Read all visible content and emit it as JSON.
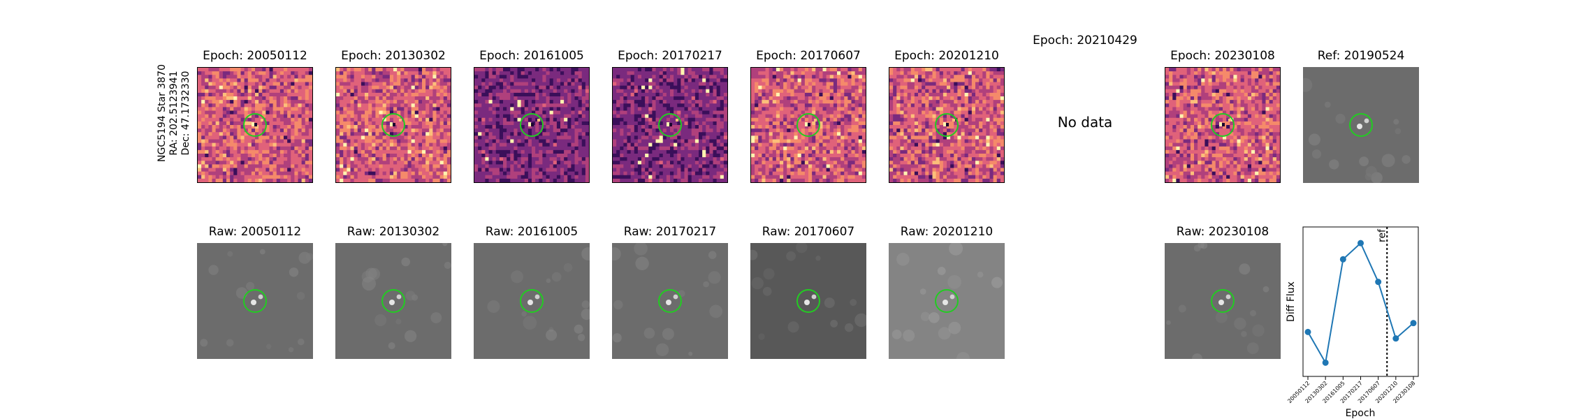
{
  "star_label": {
    "line1": "NGC5194 Star 3870",
    "line2": "RA: 202.5123941",
    "line3": "Dec: 47.1732330"
  },
  "diff_panels": [
    {
      "title": "Epoch: 20050112",
      "status": "image"
    },
    {
      "title": "Epoch: 20130302",
      "status": "image"
    },
    {
      "title": "Epoch: 20161005",
      "status": "image"
    },
    {
      "title": "Epoch: 20170217",
      "status": "image"
    },
    {
      "title": "Epoch: 20170607",
      "status": "image"
    },
    {
      "title": "Epoch: 20201210",
      "status": "image"
    },
    {
      "title": "Epoch: 20210429",
      "status": "nodata",
      "message": "No data"
    },
    {
      "title": "Epoch: 20230108",
      "status": "image"
    }
  ],
  "ref_panel": {
    "title": "Ref: 20190524"
  },
  "raw_panels": [
    {
      "title": "Raw: 20050112"
    },
    {
      "title": "Raw: 20130302"
    },
    {
      "title": "Raw: 20161005"
    },
    {
      "title": "Raw: 20170217"
    },
    {
      "title": "Raw: 20170607"
    },
    {
      "title": "Raw: 20201210"
    },
    {
      "title": "Raw: 20230108"
    }
  ],
  "colors": {
    "circle": "#22cc22",
    "series": "#1f77b4",
    "diff_map": [
      "#3a0f5a",
      "#7a2a7e",
      "#b0407c",
      "#e0627a",
      "#f58a6a",
      "#fcbf7a",
      "#fff4b0"
    ],
    "raw_gray": "#6b6b6b"
  },
  "chart_data": {
    "type": "line",
    "xlabel": "Epoch",
    "ylabel": "Diff Flux",
    "categories": [
      "20050112",
      "20130302",
      "20161005",
      "20170217",
      "20170607",
      "20201210",
      "20230108"
    ],
    "values": [
      0.3,
      -0.08,
      1.2,
      1.4,
      0.92,
      0.22,
      0.41
    ],
    "ylim": [
      -0.25,
      1.6
    ],
    "reference_line": {
      "label": "ref",
      "between": [
        "20170607",
        "20201210"
      ]
    },
    "grid": false
  }
}
